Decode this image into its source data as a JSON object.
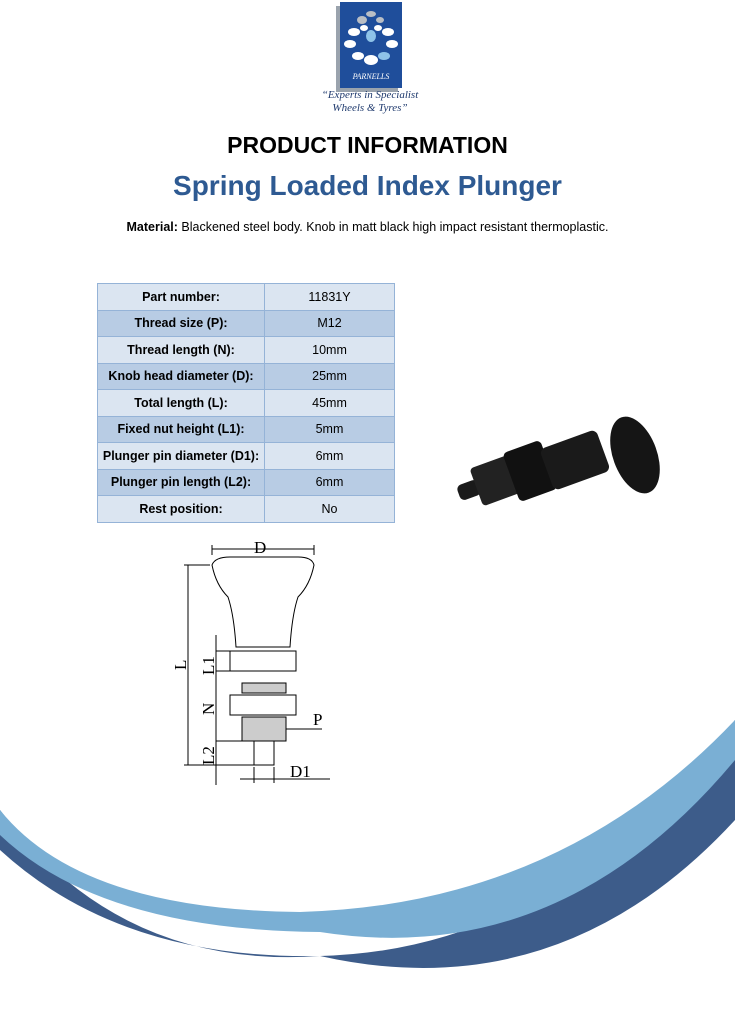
{
  "logo": {
    "brand": "PARNELLS",
    "slogan_line1": "“Experts in Specialist",
    "slogan_line2": "Wheels & Tyres”"
  },
  "header": {
    "title": "PRODUCT INFORMATION",
    "product": "Spring Loaded Index Plunger"
  },
  "material": {
    "label": "Material:",
    "text": " Blackened steel body. Knob in matt black high impact resistant thermoplastic."
  },
  "specs": [
    {
      "label": "Part number:",
      "value": "11831Y"
    },
    {
      "label": "Thread size (P):",
      "value": "M12"
    },
    {
      "label": "Thread length (N):",
      "value": "10mm"
    },
    {
      "label": "Knob head diameter (D):",
      "value": "25mm"
    },
    {
      "label": "Total length (L):",
      "value": "45mm"
    },
    {
      "label": "Fixed nut height (L1):",
      "value": "5mm"
    },
    {
      "label": "Plunger pin diameter (D1):",
      "value": "6mm"
    },
    {
      "label": "Plunger pin length (L2):",
      "value": "6mm"
    },
    {
      "label": "Rest position:",
      "value": "No"
    }
  ],
  "diagram": {
    "D": "D",
    "L": "L",
    "L1": "L1",
    "N": "N",
    "P": "P",
    "L2": "L2",
    "D1": "D1"
  },
  "colors": {
    "title_blue": "#2e5a92",
    "row_light": "#dbe5f1",
    "row_dark": "#b8cce4",
    "swoosh_light": "#7aafd4",
    "swoosh_dark": "#3d5c8a"
  }
}
